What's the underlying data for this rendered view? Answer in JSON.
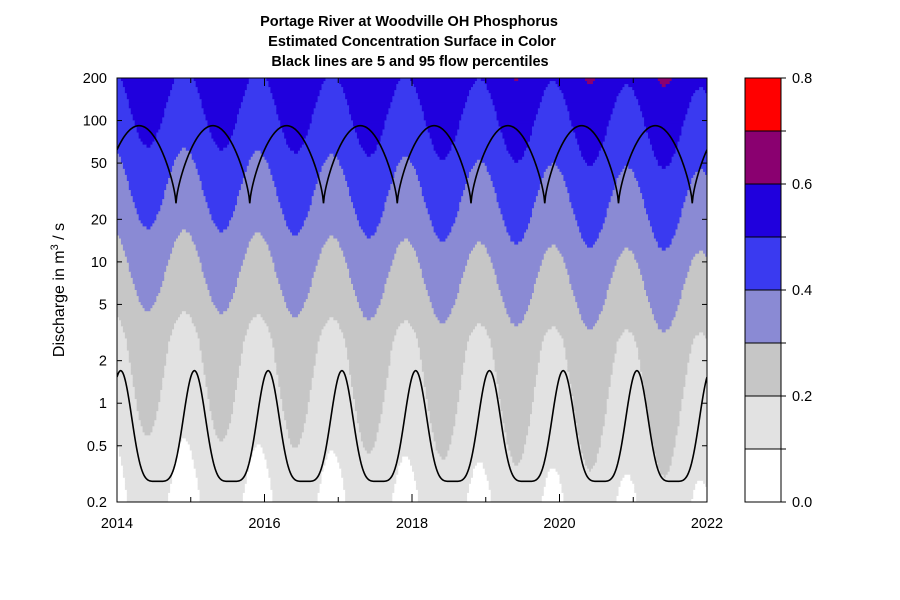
{
  "chart_data": {
    "type": "heatmap",
    "title": [
      "Portage River at Woodville OH    Phosphorus",
      "Estimated Concentration Surface in Color",
      "Black lines are 5 and 95 flow percentiles"
    ],
    "xlabel": "",
    "ylabel": "Discharge in m",
    "ylabel_superscript": "3",
    "ylabel_suffix": " / s",
    "x_range": [
      2014,
      2022
    ],
    "x_ticks": [
      2014,
      2016,
      2018,
      2020,
      2022
    ],
    "x_tick_labels": [
      "2014",
      "2016",
      "2018",
      "2020",
      "2022"
    ],
    "y_scale": "log",
    "y_range": [
      0.2,
      200
    ],
    "y_ticks": [
      0.2,
      0.5,
      1,
      2,
      5,
      10,
      20,
      50,
      100,
      200
    ],
    "y_tick_labels": [
      "0.2",
      "0.5",
      "1",
      "2",
      "5",
      "10",
      "20",
      "50",
      "100",
      "200"
    ],
    "legend": {
      "placement": "right",
      "levels": [
        0.0,
        0.1,
        0.2,
        0.3,
        0.4,
        0.5,
        0.6,
        0.7,
        0.8
      ],
      "colors": [
        "#ffffff",
        "#e2e2e2",
        "#c6c6c6",
        "#8a8ad4",
        "#3a3af0",
        "#2000dd",
        "#8a0070",
        "#ff0000"
      ],
      "tick_values": [
        0.0,
        0.2,
        0.4,
        0.6,
        0.8
      ],
      "tick_labels": [
        "0.0",
        "0.2",
        "0.4",
        "0.6",
        "0.8"
      ]
    },
    "flow_percentiles": {
      "p95": {
        "label": "95 flow percentile",
        "min": 26,
        "max": 92
      },
      "p5": {
        "label": "5 flow percentile",
        "min": 0.28,
        "max": 1.7
      }
    }
  }
}
